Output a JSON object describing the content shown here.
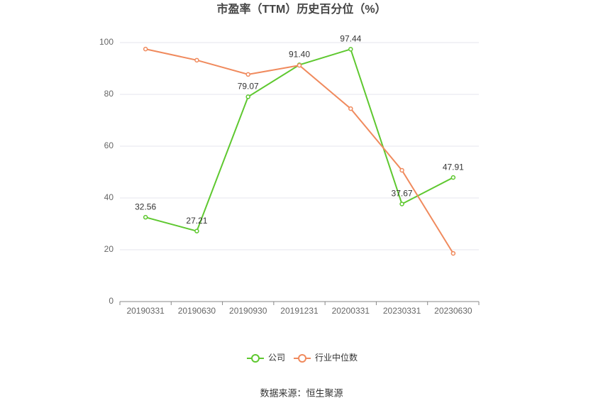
{
  "chart_data": {
    "type": "line",
    "title": "市盈率（TTM）历史百分位（%）",
    "categories": [
      "20190331",
      "20190630",
      "20190930",
      "20191231",
      "20200331",
      "20230331",
      "20230630"
    ],
    "series": [
      {
        "name": "公司",
        "color": "#5ec82f",
        "values": [
          32.56,
          27.21,
          79.07,
          91.4,
          97.44,
          37.67,
          47.91
        ],
        "value_labels": [
          "32.56",
          "27.21",
          "79.07",
          "91.40",
          "97.44",
          "37.67",
          "47.91"
        ]
      },
      {
        "name": "行业中位数",
        "color": "#f08a5d",
        "values": [
          97.5,
          93.2,
          87.7,
          91.2,
          74.5,
          50.7,
          18.6
        ]
      }
    ],
    "ylim": [
      0,
      100
    ],
    "yticks": [
      0,
      20,
      40,
      60,
      80,
      100
    ],
    "grid": true,
    "source": "数据来源：恒生聚源"
  }
}
